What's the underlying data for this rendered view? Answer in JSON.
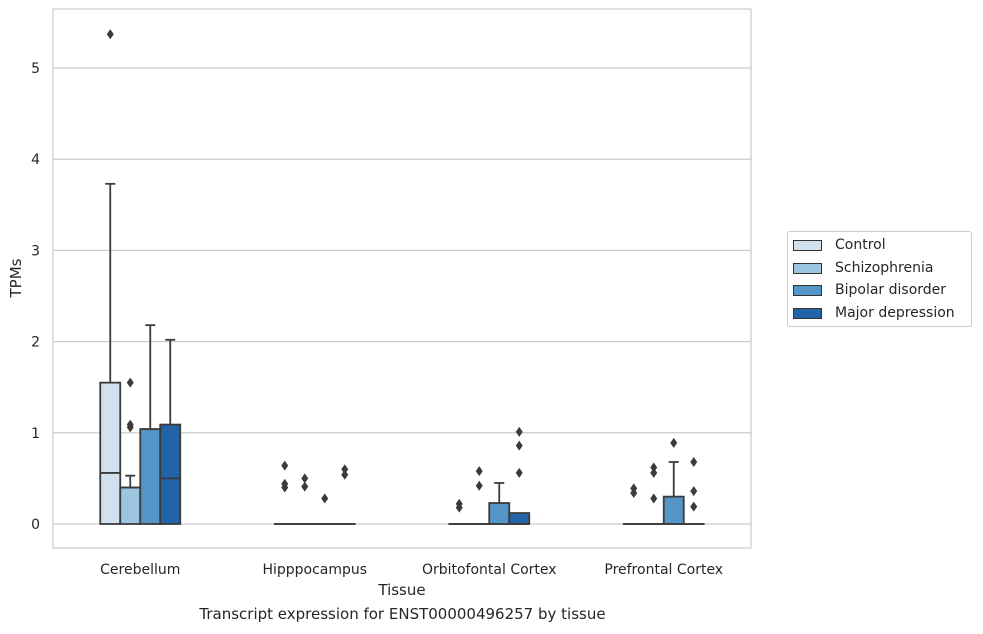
{
  "chart_data": {
    "type": "boxplot",
    "xlabel": "Tissue",
    "ylabel": "TPMs",
    "caption": "Transcript expression for ENST00000496257 by tissue",
    "ylim": [
      -0.26,
      5.65
    ],
    "yticks": [
      0,
      1,
      2,
      3,
      4,
      5
    ],
    "grid": "horizontal",
    "legend_position": "right",
    "categories": [
      "Cerebellum",
      "Hipppocampus",
      "Orbitofontal Cortex",
      "Prefrontal Cortex"
    ],
    "series": [
      {
        "name": "Control",
        "color": "#d1e1f0",
        "boxes": [
          {
            "q1": 0,
            "median": 0.56,
            "q3": 1.55,
            "whisker_low": 0,
            "whisker_high": 3.73,
            "outliers": [
              5.37
            ]
          },
          {
            "q1": 0,
            "median": 0,
            "q3": 0,
            "whisker_low": 0,
            "whisker_high": 0,
            "outliers": [
              0.64,
              0.44,
              0.4
            ]
          },
          {
            "q1": 0,
            "median": 0,
            "q3": 0,
            "whisker_low": 0,
            "whisker_high": 0,
            "outliers": [
              0.22,
              0.18
            ]
          },
          {
            "q1": 0,
            "median": 0,
            "q3": 0,
            "whisker_low": 0,
            "whisker_high": 0,
            "outliers": [
              0.39,
              0.34
            ]
          }
        ]
      },
      {
        "name": "Schizophrenia",
        "color": "#9ac4df",
        "boxes": [
          {
            "q1": 0,
            "median": 0.4,
            "q3": 0.4,
            "whisker_low": 0,
            "whisker_high": 0.53,
            "outliers": [
              1.55,
              1.09,
              1.06
            ]
          },
          {
            "q1": 0,
            "median": 0,
            "q3": 0,
            "whisker_low": 0,
            "whisker_high": 0,
            "outliers": [
              0.5,
              0.41
            ]
          },
          {
            "q1": 0,
            "median": 0,
            "q3": 0,
            "whisker_low": 0,
            "whisker_high": 0,
            "outliers": [
              0.58,
              0.42
            ]
          },
          {
            "q1": 0,
            "median": 0,
            "q3": 0,
            "whisker_low": 0,
            "whisker_high": 0,
            "outliers": [
              0.62,
              0.56,
              0.28
            ]
          }
        ]
      },
      {
        "name": "Bipolar disorder",
        "color": "#5396c7",
        "boxes": [
          {
            "q1": 0,
            "median": 1.04,
            "q3": 1.04,
            "whisker_low": 0,
            "whisker_high": 2.18,
            "outliers": []
          },
          {
            "q1": 0,
            "median": 0,
            "q3": 0,
            "whisker_low": 0,
            "whisker_high": 0,
            "outliers": [
              0.28
            ]
          },
          {
            "q1": 0,
            "median": 0,
            "q3": 0.23,
            "whisker_low": 0,
            "whisker_high": 0.45,
            "outliers": []
          },
          {
            "q1": 0,
            "median": 0,
            "q3": 0.3,
            "whisker_low": 0,
            "whisker_high": 0.68,
            "outliers": [
              0.89
            ]
          }
        ]
      },
      {
        "name": "Major depression",
        "color": "#2264a7",
        "boxes": [
          {
            "q1": 0,
            "median": 0.5,
            "q3": 1.09,
            "whisker_low": 0,
            "whisker_high": 2.02,
            "outliers": []
          },
          {
            "q1": 0,
            "median": 0,
            "q3": 0,
            "whisker_low": 0,
            "whisker_high": 0,
            "outliers": [
              0.6,
              0.54
            ]
          },
          {
            "q1": 0,
            "median": 0,
            "q3": 0.12,
            "whisker_low": 0,
            "whisker_high": 0.12,
            "outliers": [
              1.01,
              0.86,
              0.56
            ]
          },
          {
            "q1": 0,
            "median": 0,
            "q3": 0,
            "whisker_low": 0,
            "whisker_high": 0,
            "outliers": [
              0.68,
              0.36,
              0.19
            ]
          }
        ]
      }
    ]
  }
}
